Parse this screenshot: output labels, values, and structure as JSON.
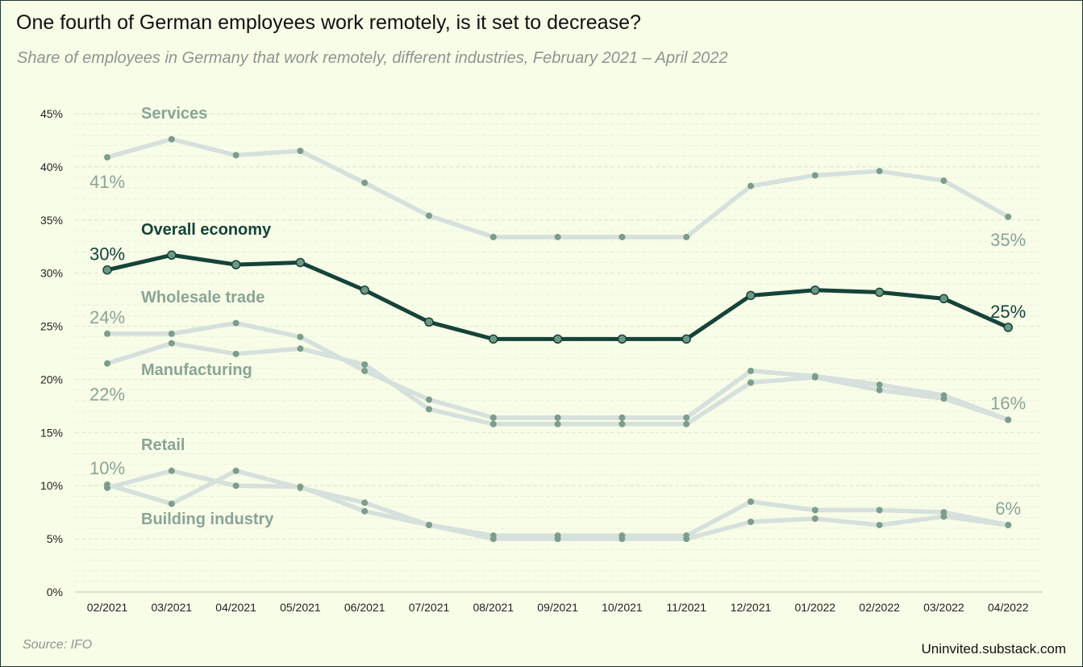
{
  "title": "One fourth of German employees work remotely, is it set to decrease?",
  "subtitle": "Share of employees in Germany that work remotely, different industries, February 2021 – April 2022",
  "source": "Source: IFO",
  "credit": "Uninvited.substack.com",
  "colors": {
    "background": "#f8fde8",
    "highlight_line": "#15433a",
    "highlight_marker": "#6e9884",
    "other_line": "#d6e0dc",
    "other_marker": "#7d9d8b",
    "label_gray": "#8aa496",
    "grid": "#dfe8cf"
  },
  "chart_data": {
    "type": "line",
    "categories": [
      "02/2021",
      "03/2021",
      "04/2021",
      "05/2021",
      "06/2021",
      "07/2021",
      "08/2021",
      "09/2021",
      "10/2021",
      "11/2021",
      "12/2021",
      "01/2022",
      "02/2022",
      "03/2022",
      "04/2022"
    ],
    "ylim": [
      0,
      45
    ],
    "yticks": [
      "0%",
      "5%",
      "10%",
      "15%",
      "20%",
      "25%",
      "30%",
      "35%",
      "40%",
      "45%"
    ],
    "grid": "horizontal dashed",
    "legend": "inline labels next to lines",
    "series": [
      {
        "name": "Services",
        "highlight": false,
        "values": [
          40.9,
          42.6,
          41.1,
          41.5,
          38.5,
          35.4,
          33.4,
          33.4,
          33.4,
          33.4,
          38.2,
          39.2,
          39.6,
          38.7,
          35.3
        ],
        "start_label": "41%",
        "end_label": "35%"
      },
      {
        "name": "Wholesale trade",
        "highlight": false,
        "values": [
          24.3,
          24.3,
          25.3,
          24.0,
          20.8,
          18.1,
          16.4,
          16.4,
          16.4,
          16.4,
          20.8,
          20.3,
          19.5,
          18.5,
          16.2
        ],
        "start_label": "24%",
        "end_label": "16%"
      },
      {
        "name": "Manufacturing",
        "highlight": false,
        "values": [
          21.5,
          23.4,
          22.4,
          22.9,
          21.4,
          17.2,
          15.8,
          15.8,
          15.8,
          15.8,
          19.7,
          20.2,
          19.0,
          18.2,
          16.2
        ],
        "start_label": "22%",
        "end_label": ""
      },
      {
        "name": "Retail",
        "highlight": false,
        "values": [
          10.1,
          8.3,
          11.4,
          9.8,
          8.4,
          6.3,
          5.3,
          5.3,
          5.3,
          5.3,
          8.5,
          7.7,
          7.7,
          7.5,
          6.3
        ],
        "start_label": "10%",
        "end_label": "6%"
      },
      {
        "name": "Building industry",
        "highlight": false,
        "values": [
          9.8,
          11.4,
          10.0,
          9.9,
          7.6,
          6.3,
          5.0,
          5.0,
          5.0,
          5.0,
          6.6,
          6.9,
          6.3,
          7.1,
          6.3
        ],
        "start_label": "",
        "end_label": ""
      },
      {
        "name": "Overall economy",
        "highlight": true,
        "values": [
          30.3,
          31.7,
          30.8,
          31.0,
          28.4,
          25.4,
          23.8,
          23.8,
          23.8,
          23.8,
          27.9,
          28.4,
          28.2,
          27.6,
          24.9
        ],
        "start_label": "30%",
        "end_label": "25%"
      }
    ],
    "inline_labels": [
      {
        "text": "Services",
        "highlight": false
      },
      {
        "text": "Overall economy",
        "highlight": true
      },
      {
        "text": "Wholesale trade",
        "highlight": false
      },
      {
        "text": "Manufacturing",
        "highlight": false
      },
      {
        "text": "Retail",
        "highlight": false
      },
      {
        "text": "Building industry",
        "highlight": false
      }
    ]
  }
}
